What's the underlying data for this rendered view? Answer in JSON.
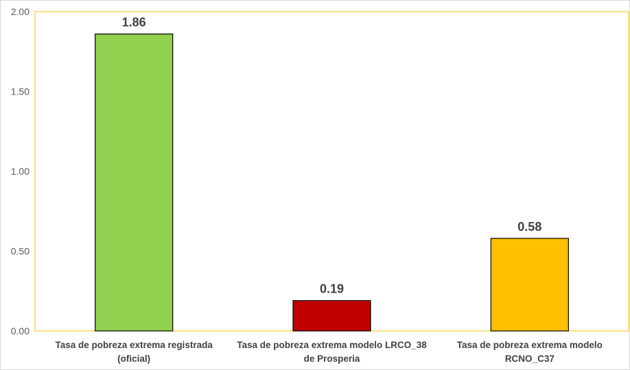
{
  "chart_data": {
    "type": "bar",
    "categories": [
      [
        "Tasa de pobreza extrema registrada",
        "(oficial)"
      ],
      [
        "Tasa de pobreza extrema modelo LRCO_38",
        "de Prosperia"
      ],
      [
        "Tasa de pobreza extrema modelo",
        "RCNO_C37"
      ]
    ],
    "values": [
      1.86,
      0.19,
      0.58
    ],
    "data_labels": [
      "1.86",
      "0.19",
      "0.58"
    ],
    "bar_colors": [
      "#92d050",
      "#c00000",
      "#ffc000"
    ],
    "plot_border_color": "#ffc000",
    "ylim": [
      0,
      2
    ],
    "yticks": [
      "0.00",
      "0.50",
      "1.00",
      "1.50",
      "2.00"
    ],
    "ytick_values": [
      0,
      0.5,
      1.0,
      1.5,
      2.0
    ],
    "grid": false,
    "legend": "none",
    "title": "",
    "xlabel": "",
    "ylabel": ""
  }
}
